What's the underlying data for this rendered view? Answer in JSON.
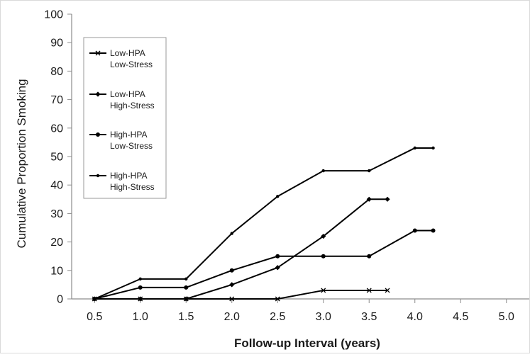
{
  "chart_data": {
    "type": "line",
    "title": "",
    "xlabel": "Follow-up Interval (years)",
    "ylabel": "Cumulative Proportion Smoking",
    "xlim": [
      0.25,
      5.25
    ],
    "ylim": [
      0,
      100
    ],
    "x_ticks": [
      "0.5",
      "1.0",
      "1.5",
      "2.0",
      "2.5",
      "3.0",
      "3.5",
      "4.0",
      "4.5",
      "5.0"
    ],
    "y_ticks": [
      "0",
      "10",
      "20",
      "30",
      "40",
      "50",
      "60",
      "70",
      "80",
      "90",
      "100"
    ],
    "grid": false,
    "legend_position": "top-left",
    "series": [
      {
        "name_lines": [
          "Low-HPA",
          "Low-Stress"
        ],
        "marker": "x",
        "color": "#000000",
        "points": [
          [
            0.5,
            0
          ],
          [
            1.0,
            0
          ],
          [
            1.5,
            0
          ],
          [
            2.0,
            0
          ],
          [
            2.5,
            0
          ],
          [
            3.0,
            3
          ],
          [
            3.5,
            3
          ],
          [
            3.7,
            3
          ]
        ]
      },
      {
        "name_lines": [
          "Low-HPA",
          "High-Stress"
        ],
        "marker": "diamond",
        "color": "#000000",
        "points": [
          [
            0.5,
            0
          ],
          [
            1.0,
            0
          ],
          [
            1.5,
            0
          ],
          [
            2.0,
            5
          ],
          [
            2.5,
            11
          ],
          [
            3.0,
            22
          ],
          [
            3.5,
            35
          ],
          [
            3.7,
            35
          ]
        ]
      },
      {
        "name_lines": [
          "High-HPA",
          "Low-Stress"
        ],
        "marker": "circle",
        "color": "#000000",
        "points": [
          [
            0.5,
            0
          ],
          [
            1.0,
            4
          ],
          [
            1.5,
            4
          ],
          [
            2.0,
            10
          ],
          [
            2.5,
            15
          ],
          [
            3.0,
            15
          ],
          [
            3.5,
            15
          ],
          [
            4.0,
            24
          ],
          [
            4.2,
            24
          ]
        ]
      },
      {
        "name_lines": [
          "High-HPA",
          "High-Stress"
        ],
        "marker": "dot",
        "color": "#000000",
        "points": [
          [
            0.5,
            0
          ],
          [
            1.0,
            7
          ],
          [
            1.5,
            7
          ],
          [
            2.0,
            23
          ],
          [
            2.5,
            36
          ],
          [
            3.0,
            45
          ],
          [
            3.5,
            45
          ],
          [
            4.0,
            53
          ],
          [
            4.2,
            53
          ]
        ]
      }
    ]
  }
}
